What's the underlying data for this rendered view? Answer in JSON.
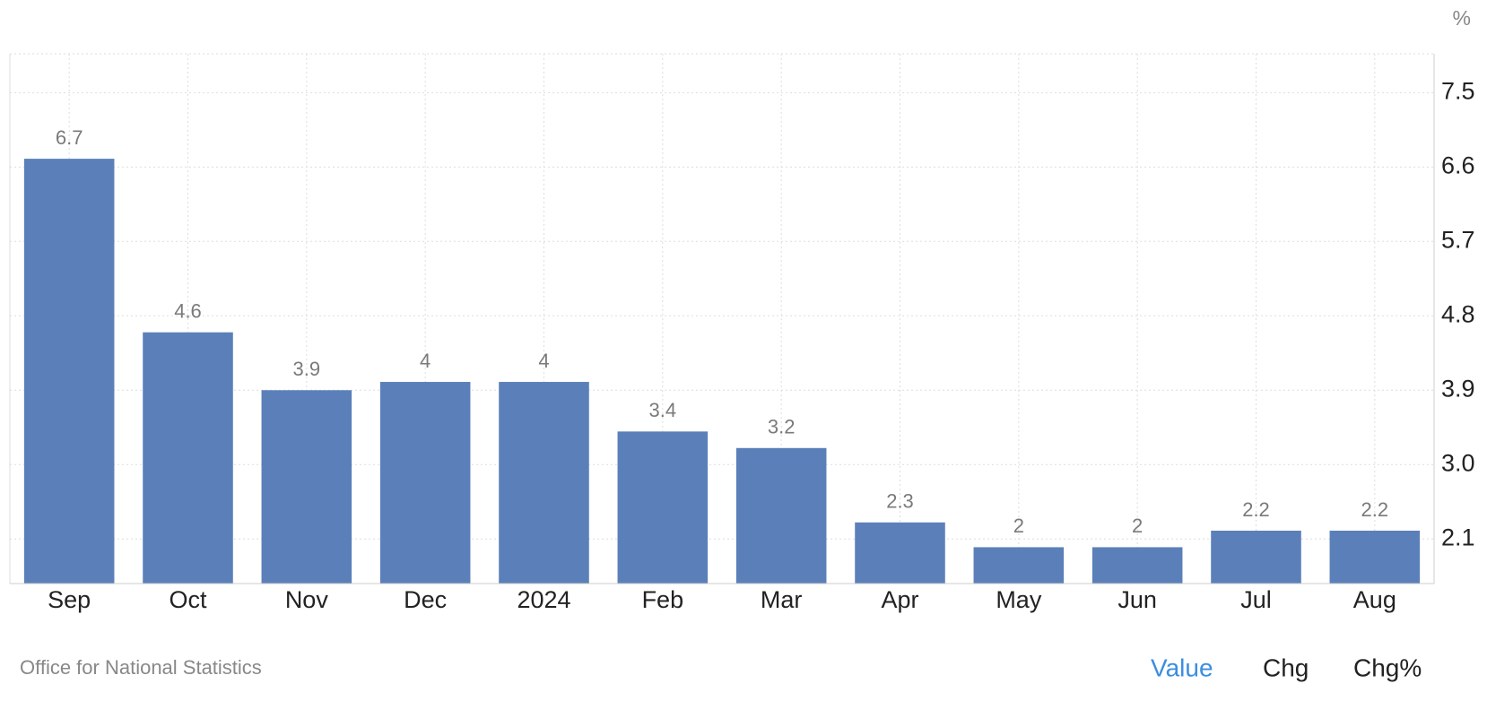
{
  "chart_data": {
    "type": "bar",
    "y_unit": "%",
    "categories": [
      "Sep",
      "Oct",
      "Nov",
      "Dec",
      "2024",
      "Feb",
      "Mar",
      "Apr",
      "May",
      "Jun",
      "Jul",
      "Aug"
    ],
    "values": [
      6.7,
      4.6,
      3.9,
      4,
      4,
      3.4,
      3.2,
      2.3,
      2,
      2,
      2.2,
      2.2
    ],
    "color": "#5b80b9",
    "ylim": [
      1.56,
      7.97
    ],
    "yticks": [
      2.1,
      {
        "value": 3,
        "label": "3.0"
      },
      3.9,
      4.8,
      5.7,
      6.6,
      7.5
    ],
    "grid": true,
    "y_axis_side": "right"
  },
  "source": "Office for National Statistics",
  "tabs": [
    "Value",
    "Chg",
    "Chg%"
  ]
}
